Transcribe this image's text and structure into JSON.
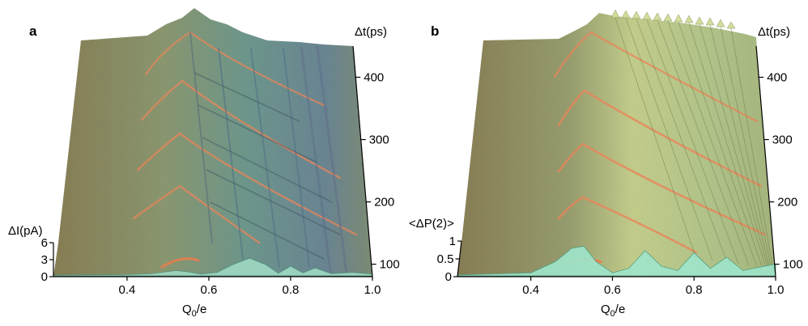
{
  "chart_data": [
    {
      "panel": "a",
      "type": "area",
      "xlabel_main": "Q",
      "xlabel_sub": "0",
      "xlabel_tail": "/e",
      "xticks": [
        "0.4",
        "0.6",
        "0.8",
        "1.0"
      ],
      "xtick_values": [
        0.4,
        0.6,
        0.8,
        1.0
      ],
      "xlim": [
        0.22,
        1.0
      ],
      "ylabel": "Δt(ps)",
      "yticks": [
        "100",
        "200",
        "300",
        "400"
      ],
      "ytick_values": [
        100,
        200,
        300,
        400
      ],
      "ylim": [
        80,
        450
      ],
      "zlabel": "ΔI(pA)",
      "zticks": [
        "0",
        "3",
        "6"
      ],
      "ztick_values": [
        0,
        3,
        6
      ],
      "zlim": [
        0,
        6
      ],
      "baseline_trace": {
        "x": [
          0.22,
          0.4,
          0.46,
          0.5,
          0.52,
          0.55,
          0.58,
          0.62,
          0.66,
          0.7,
          0.74,
          0.77,
          0.8,
          0.83,
          0.86,
          0.9,
          0.95,
          1.0
        ],
        "z": [
          0.0,
          0.1,
          0.3,
          0.8,
          1.0,
          0.7,
          0.2,
          0.6,
          2.4,
          3.8,
          2.3,
          0.4,
          2.0,
          0.5,
          1.6,
          0.3,
          0.6,
          0.2
        ]
      }
    },
    {
      "panel": "b",
      "type": "area",
      "xlabel_main": "Q",
      "xlabel_sub": "0",
      "xlabel_tail": "/e",
      "xticks": [
        "0.4",
        "0.6",
        "0.8",
        "1.0"
      ],
      "xtick_values": [
        0.4,
        0.6,
        0.8,
        1.0
      ],
      "xlim": [
        0.22,
        1.0
      ],
      "ylabel": "Δt(ps)",
      "yticks": [
        "100",
        "200",
        "300",
        "400"
      ],
      "ytick_values": [
        100,
        200,
        300,
        400
      ],
      "ylim": [
        80,
        450
      ],
      "zlabel": "<ΔP(2)>",
      "zticks": [
        "0",
        "0.5",
        "1"
      ],
      "ztick_values": [
        0,
        0.5,
        1
      ],
      "zlim": [
        0,
        1
      ],
      "baseline_trace": {
        "x": [
          0.22,
          0.4,
          0.46,
          0.5,
          0.53,
          0.56,
          0.6,
          0.64,
          0.68,
          0.72,
          0.76,
          0.8,
          0.84,
          0.88,
          0.92,
          1.0
        ],
        "z": [
          0.0,
          0.05,
          0.3,
          0.6,
          0.65,
          0.3,
          0.05,
          0.15,
          0.55,
          0.2,
          0.1,
          0.5,
          0.15,
          0.4,
          0.1,
          0.25
        ]
      }
    }
  ],
  "panels": [
    {
      "letter": "a"
    },
    {
      "letter": "b"
    }
  ],
  "colors": {
    "surface_front": "#8a8455",
    "surface_mid": "#7da08a",
    "surface_back": "#6f8e9a",
    "ridge_highlight": "#e9845a",
    "baseline_fill": "#9fd9c4",
    "mesh_line": "#4e5b4a",
    "b_surface_light": "#cfd78f"
  }
}
